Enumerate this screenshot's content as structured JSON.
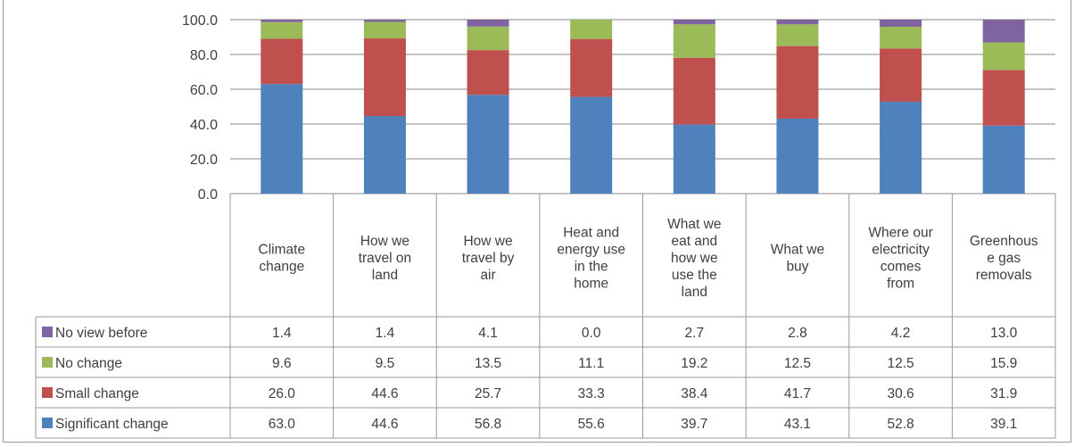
{
  "chart_data": {
    "type": "bar",
    "stacked": true,
    "categories": [
      [
        "Climate",
        "change"
      ],
      [
        "How we",
        "travel on",
        "land"
      ],
      [
        "How we",
        "travel by",
        "air"
      ],
      [
        "Heat and",
        "energy use",
        "in the",
        "home"
      ],
      [
        "What we",
        "eat and",
        "how we",
        "use the",
        "land"
      ],
      [
        "What we",
        "buy"
      ],
      [
        "Where our",
        "electricity",
        "comes",
        "from"
      ],
      [
        "Greenhous",
        "e gas",
        "removals"
      ]
    ],
    "series": [
      {
        "name": "No view before",
        "color": "#8064A2",
        "values": [
          "1.4",
          "1.4",
          "4.1",
          "0.0",
          "2.7",
          "2.8",
          "4.2",
          "13.0"
        ]
      },
      {
        "name": "No change",
        "color": "#9BBB59",
        "values": [
          "9.6",
          "9.5",
          "13.5",
          "11.1",
          "19.2",
          "12.5",
          "12.5",
          "15.9"
        ]
      },
      {
        "name": "Small change",
        "color": "#C0504D",
        "values": [
          "26.0",
          "44.6",
          "25.7",
          "33.3",
          "38.4",
          "41.7",
          "30.6",
          "31.9"
        ]
      },
      {
        "name": "Significant change",
        "color": "#4F81BD",
        "values": [
          "63.0",
          "44.6",
          "56.8",
          "55.6",
          "39.7",
          "43.1",
          "52.8",
          "39.1"
        ]
      }
    ],
    "stack_order_bottom_to_top": [
      "Significant change",
      "Small change",
      "No change",
      "No view before"
    ],
    "ylim": [
      0,
      100
    ],
    "yticks": [
      "0.0",
      "20.0",
      "40.0",
      "60.0",
      "80.0",
      "100.0"
    ],
    "gridlines": true,
    "legend": "data-table-rows",
    "title": "",
    "xlabel": "",
    "ylabel": ""
  }
}
